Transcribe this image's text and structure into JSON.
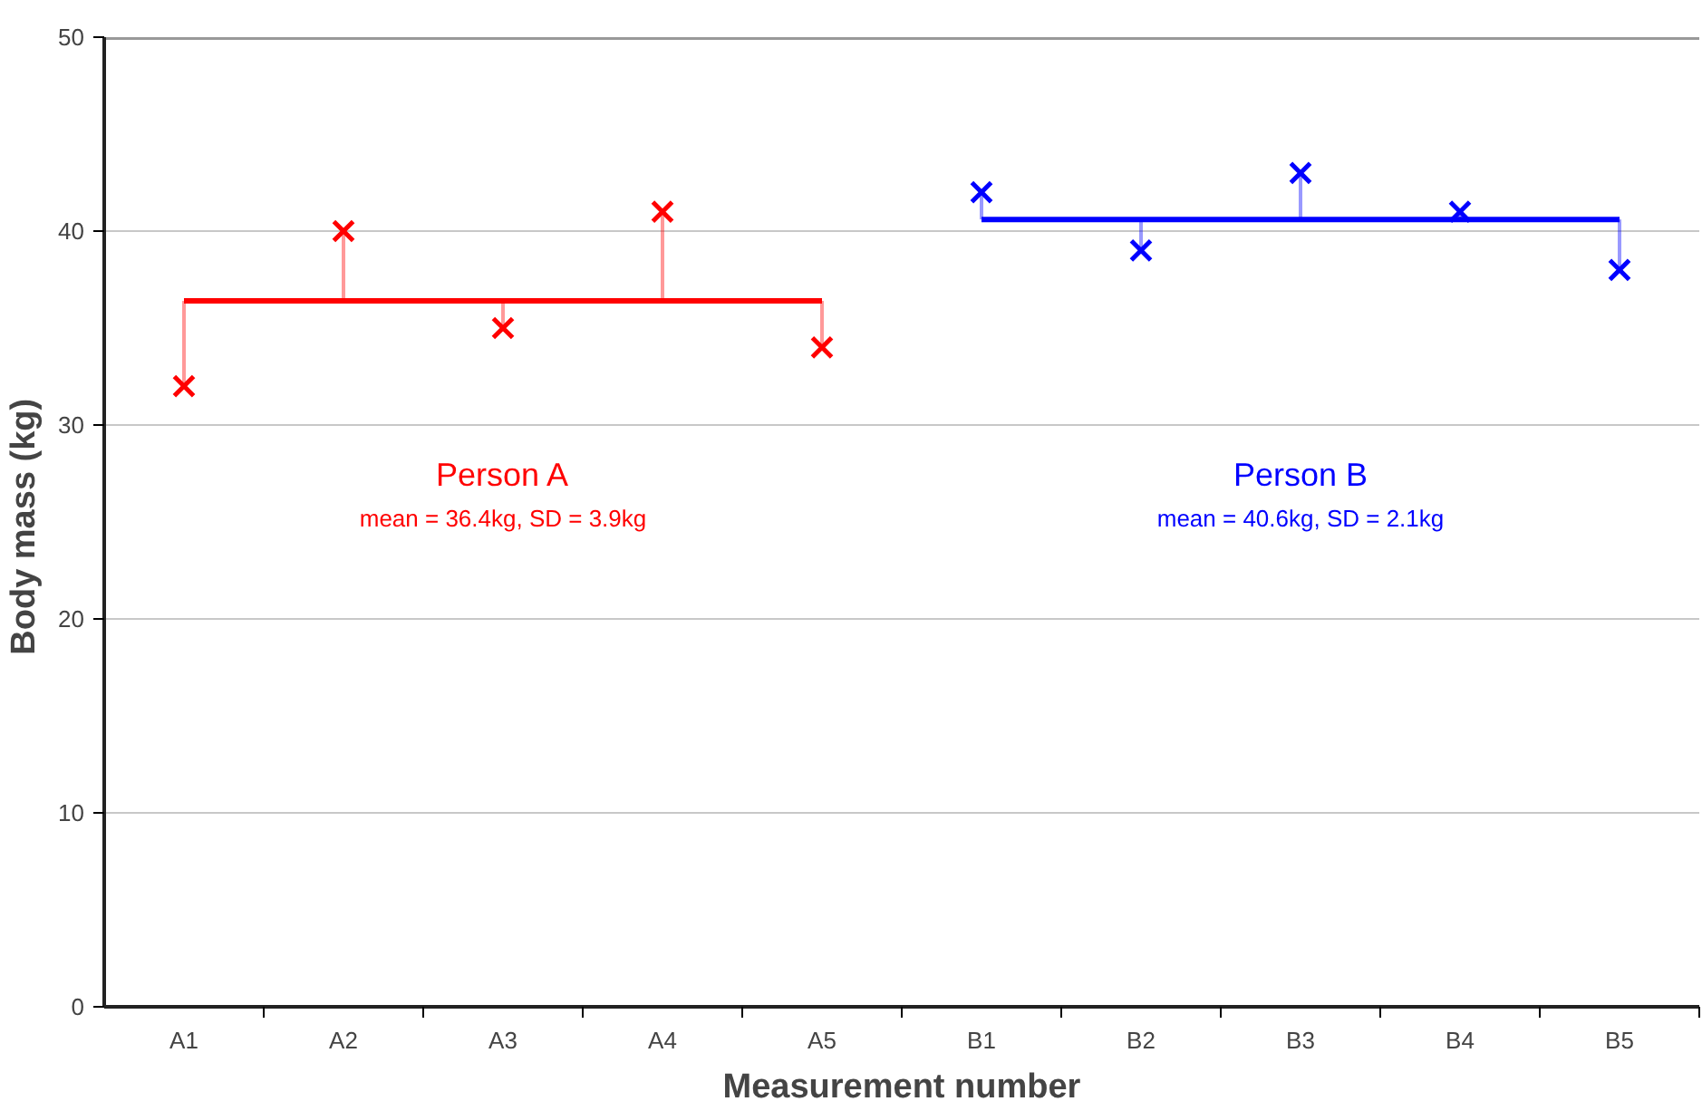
{
  "chart_data": {
    "type": "scatter",
    "xlabel": "Measurement number",
    "ylabel": "Body mass  (kg)",
    "categories": [
      "A1",
      "A2",
      "A3",
      "A4",
      "A5",
      "B1",
      "B2",
      "B3",
      "B4",
      "B5"
    ],
    "series": [
      {
        "type": "line",
        "marker": "none",
        "color": "#ff0000",
        "values": [
          36.4,
          36.4,
          36.4,
          36.4,
          36.4,
          null,
          null,
          null,
          null,
          null
        ]
      },
      {
        "type": "line",
        "marker": "none",
        "color": "#0000ff",
        "values": [
          null,
          null,
          null,
          null,
          null,
          40.6,
          40.6,
          40.6,
          40.6,
          40.6
        ]
      },
      {
        "name": "Person A",
        "color": "#ff0000",
        "values": [
          32,
          40,
          35,
          41,
          34,
          null,
          null,
          null,
          null,
          null
        ],
        "errors": [
          [
            32,
            36.4
          ],
          [
            36.4,
            40
          ],
          [
            35,
            36.4
          ],
          [
            36.4,
            41
          ],
          [
            34,
            36.4
          ],
          null,
          null,
          null,
          null,
          null
        ]
      },
      {
        "name": "Person B",
        "color": "#0000ff",
        "values": [
          null,
          null,
          null,
          null,
          null,
          42,
          39,
          43,
          41,
          38
        ],
        "errors": [
          null,
          null,
          null,
          null,
          null,
          [
            40.6,
            42
          ],
          [
            39,
            40.6
          ],
          [
            40.6,
            43
          ],
          [
            40.6,
            41
          ],
          [
            38,
            40.6
          ]
        ]
      }
    ],
    "annotations": [
      "mean = 36.4kg, SD = 3.9kg",
      "mean = 40.6kg, SD = 2.1kg"
    ],
    "ylim": [
      0,
      50
    ],
    "yticks": [
      0,
      10,
      20,
      30,
      40,
      50
    ],
    "grid": "y",
    "marker": "cross"
  }
}
